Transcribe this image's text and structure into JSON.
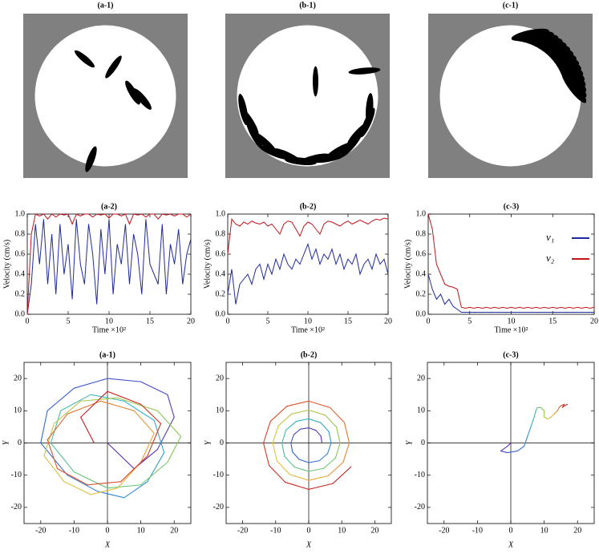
{
  "chart_data": [
    {
      "type": "snapshot",
      "title": "(a-1)"
    },
    {
      "type": "snapshot",
      "title": "(b-1)"
    },
    {
      "type": "snapshot",
      "title": "(c-1)"
    },
    {
      "type": "line",
      "title": "(a-2)",
      "xlabel": "Time ×10²",
      "ylabel": "Velocity (cm/s)",
      "x": [
        0,
        0.5,
        1,
        1.5,
        2,
        2.5,
        3,
        3.5,
        4,
        4.5,
        5,
        5.5,
        6,
        6.5,
        7,
        7.5,
        8,
        8.5,
        9,
        9.5,
        10,
        10.5,
        11,
        11.5,
        12,
        12.5,
        13,
        13.5,
        14,
        14.5,
        15,
        15.5,
        16,
        16.5,
        17,
        17.5,
        18,
        18.5,
        19,
        19.5,
        20
      ],
      "series": [
        {
          "color": "#1f2a9c",
          "values": [
            0,
            0.3,
            0.9,
            0.5,
            0.95,
            0.3,
            0.8,
            0.2,
            0.9,
            0.4,
            0.7,
            0.15,
            0.95,
            0.5,
            0.3,
            0.9,
            0.6,
            0.1,
            0.85,
            0.4,
            0.95,
            0.2,
            0.7,
            0.5,
            0.9,
            0.3,
            0.8,
            0.6,
            0.2,
            0.95,
            0.5,
            0.4,
            0.3,
            0.9,
            0.2,
            0.7,
            0.5,
            0.85,
            0.3,
            0.6,
            0.75
          ]
        },
        {
          "color": "#c0141a",
          "values": [
            0,
            0.8,
            1,
            0.98,
            1,
            0.95,
            1,
            0.97,
            1,
            0.99,
            1,
            0.9,
            1,
            0.98,
            1,
            1,
            0.97,
            1,
            0.99,
            1,
            0.96,
            1,
            1,
            0.98,
            1,
            0.9,
            1,
            0.99,
            1,
            0.97,
            1,
            1,
            0.95,
            1,
            0.99,
            1,
            0.98,
            1,
            1,
            0.97,
            1
          ]
        }
      ],
      "xlim": [
        0,
        20
      ],
      "ylim": [
        0,
        1
      ],
      "xticks": [
        0,
        5,
        10,
        15,
        20
      ],
      "yticks": [
        {
          "value": 0,
          "label": "0.0"
        },
        0.2,
        0.4,
        0.6,
        0.8,
        {
          "value": 1,
          "label": "1.0"
        }
      ]
    },
    {
      "type": "line",
      "title": "(b-2)",
      "xlabel": "Time ×10²",
      "ylabel": "Velocity (cm/s)",
      "x": [
        0,
        0.5,
        1,
        1.5,
        2,
        2.5,
        3,
        3.5,
        4,
        4.5,
        5,
        5.5,
        6,
        6.5,
        7,
        7.5,
        8,
        8.5,
        9,
        9.5,
        10,
        10.5,
        11,
        11.5,
        12,
        12.5,
        13,
        13.5,
        14,
        14.5,
        15,
        15.5,
        16,
        16.5,
        17,
        17.5,
        18,
        18.5,
        19,
        19.5,
        20
      ],
      "series": [
        {
          "color": "#1f2a9c",
          "values": [
            0.2,
            0.45,
            0.1,
            0.3,
            0.35,
            0.4,
            0.3,
            0.45,
            0.5,
            0.35,
            0.5,
            0.4,
            0.55,
            0.45,
            0.6,
            0.5,
            0.45,
            0.55,
            0.5,
            0.6,
            0.7,
            0.55,
            0.65,
            0.5,
            0.6,
            0.55,
            0.65,
            0.5,
            0.6,
            0.45,
            0.55,
            0.5,
            0.6,
            0.4,
            0.5,
            0.55,
            0.45,
            0.6,
            0.5,
            0.55,
            0.4
          ]
        },
        {
          "color": "#c0141a",
          "values": [
            0.6,
            0.95,
            0.9,
            0.88,
            0.92,
            0.9,
            0.93,
            0.91,
            0.9,
            0.92,
            0.88,
            0.9,
            0.85,
            0.8,
            0.9,
            0.93,
            0.92,
            0.85,
            0.78,
            0.88,
            0.92,
            0.9,
            0.85,
            0.8,
            0.9,
            0.93,
            0.92,
            0.9,
            0.88,
            0.91,
            0.93,
            0.9,
            0.92,
            0.94,
            0.92,
            0.9,
            0.93,
            0.95,
            0.94,
            0.96,
            0.95
          ]
        }
      ],
      "xlim": [
        0,
        20
      ],
      "ylim": [
        0,
        1
      ],
      "xticks": [
        0,
        5,
        10,
        15,
        20
      ],
      "yticks": [
        {
          "value": 0,
          "label": "0.0"
        },
        0.2,
        0.4,
        0.6,
        0.8,
        {
          "value": 1,
          "label": "1.0"
        }
      ]
    },
    {
      "type": "line",
      "title": "(c-3)",
      "xlabel": "Time ×10²",
      "ylabel": "Velocity (cm/s)",
      "x": [
        0,
        0.5,
        1,
        1.5,
        2,
        2.5,
        3,
        3.5,
        4,
        4.5,
        5,
        5.5,
        6,
        6.5,
        7,
        7.5,
        8,
        8.5,
        9,
        9.5,
        10,
        10.5,
        11,
        11.5,
        12,
        12.5,
        13,
        13.5,
        14,
        14.5,
        15,
        15.5,
        16,
        16.5,
        17,
        17.5,
        18,
        18.5,
        19,
        19.5,
        20
      ],
      "series": [
        {
          "name": "v₁",
          "color": "#1f2a9c",
          "values": [
            0.4,
            0.25,
            0.15,
            0.2,
            0.1,
            0.15,
            0.08,
            0.05,
            0.02,
            0.02,
            0.02,
            0.02,
            0.02,
            0.02,
            0.02,
            0.02,
            0.02,
            0.02,
            0.02,
            0.02,
            0.02,
            0.02,
            0.02,
            0.02,
            0.02,
            0.02,
            0.02,
            0.02,
            0.02,
            0.02,
            0.02,
            0.02,
            0.02,
            0.02,
            0.02,
            0.02,
            0.02,
            0.02,
            0.02,
            0.02,
            0.02
          ]
        },
        {
          "name": "v₂",
          "color": "#c0141a",
          "values": [
            1,
            0.85,
            0.5,
            0.4,
            0.3,
            0.28,
            0.27,
            0.25,
            0.07,
            0.06,
            0.07,
            0.06,
            0.07,
            0.06,
            0.07,
            0.06,
            0.07,
            0.06,
            0.07,
            0.06,
            0.07,
            0.06,
            0.07,
            0.06,
            0.07,
            0.06,
            0.07,
            0.06,
            0.07,
            0.06,
            0.07,
            0.06,
            0.07,
            0.06,
            0.07,
            0.06,
            0.07,
            0.06,
            0.07,
            0.06,
            0.07
          ]
        }
      ],
      "legend": "upper right",
      "xlim": [
        0,
        20
      ],
      "ylim": [
        0,
        1
      ],
      "xticks": [
        0,
        5,
        10,
        15,
        20
      ],
      "yticks": [
        {
          "value": 0,
          "label": "0.0"
        },
        0.2,
        0.4,
        0.6,
        0.8,
        {
          "value": 1,
          "label": "1.0"
        }
      ]
    },
    {
      "type": "trajectory",
      "title": "(a-1)",
      "xlabel": "X",
      "ylabel": "Y",
      "colormap": [
        "#5b2aa8",
        "#3566d6",
        "#33b5c6",
        "#7cc95a",
        "#e8c33a",
        "#e0542a",
        "#c8191b"
      ],
      "series": [
        {
          "x": [
            0,
            8,
            15,
            20,
            18,
            10,
            0,
            -10,
            -18,
            -20,
            -12,
            -3,
            5,
            12,
            17,
            14,
            5,
            -5,
            -14,
            -17,
            -10,
            0,
            10,
            18,
            22,
            15,
            3,
            -8,
            -16,
            -19,
            -13,
            -5,
            3,
            10,
            14,
            8,
            -2,
            -12,
            -18,
            -15,
            -6,
            4,
            12,
            16,
            10,
            0,
            -8,
            -4
          ],
          "y": [
            0,
            -8,
            -2,
            8,
            15,
            19,
            20,
            17,
            10,
            0,
            -10,
            -15,
            -17,
            -12,
            -3,
            7,
            13,
            15,
            10,
            0,
            -9,
            -14,
            -13,
            -6,
            2,
            10,
            14,
            13,
            6,
            -4,
            -12,
            -16,
            -14,
            -6,
            3,
            10,
            13,
            9,
            1,
            -8,
            -13,
            -12,
            -4,
            6,
            12,
            16,
            8,
            0
          ]
        }
      ],
      "xlim": [
        -25,
        25
      ],
      "ylim": [
        -25,
        25
      ],
      "xticks": [
        -20,
        -10,
        0,
        10,
        20
      ],
      "yticks": [
        -20,
        -10,
        0,
        10,
        20
      ],
      "zero_lines": true
    },
    {
      "type": "trajectory",
      "title": "(b-2)",
      "xlabel": "X",
      "ylabel": "Y",
      "colormap": [
        "#5b2aa8",
        "#3566d6",
        "#33b5c6",
        "#7cc95a",
        "#e8c33a",
        "#e0542a",
        "#c8191b"
      ],
      "series": [
        {
          "x": [
            4,
            3.7,
            2.2,
            0,
            -2.5,
            -4.5,
            -5.4,
            -4.9,
            -2.9,
            0,
            3.2,
            5.7,
            6.8,
            6.1,
            3.6,
            0,
            -3.8,
            -6.9,
            -8.1,
            -7.3,
            -4.3,
            0,
            4.5,
            8.1,
            9.5,
            8.4,
            5,
            0,
            -5.2,
            -9.2,
            -10.9,
            -9.6,
            -5.7,
            0,
            5.9,
            10.4,
            12.3,
            10.8,
            6.4,
            0,
            -6.6,
            -11.6,
            -13.7,
            -12,
            -7.1,
            0,
            7.3,
            12.8
          ],
          "y": [
            0,
            2.1,
            3.9,
            4.7,
            4.3,
            2.6,
            0,
            -2.8,
            -5.1,
            -6.1,
            -5.5,
            -3.3,
            0,
            3.5,
            6.3,
            7.5,
            6.7,
            4,
            0,
            -4.2,
            -7.5,
            -8.8,
            -7.9,
            -4.7,
            0,
            4.9,
            8.6,
            10.2,
            9,
            5.3,
            0,
            -5.6,
            -9.8,
            -11.6,
            -10.2,
            -6,
            0,
            6.3,
            11,
            13,
            11.4,
            6.7,
            0,
            -7,
            -12.2,
            -14.4,
            -12.6,
            -7.4
          ]
        }
      ],
      "xlim": [
        -25,
        25
      ],
      "ylim": [
        -25,
        25
      ],
      "xticks": [
        -20,
        -10,
        0,
        10,
        20
      ],
      "yticks": [
        -20,
        -10,
        0,
        10,
        20
      ],
      "zero_lines": true
    },
    {
      "type": "trajectory",
      "title": "(c-3)",
      "xlabel": "X",
      "ylabel": "Y",
      "colormap": [
        "#5b2aa8",
        "#3566d6",
        "#33b5c6",
        "#7cc95a",
        "#e8c33a",
        "#e0542a",
        "#c8191b"
      ],
      "series": [
        {
          "x": [
            0,
            -1,
            -3,
            -1,
            2,
            4,
            5,
            6,
            7,
            7.5,
            8,
            9,
            10,
            10,
            11,
            12,
            13,
            14,
            14.5,
            15,
            16,
            15.5,
            16,
            17
          ],
          "y": [
            0,
            -1,
            -2.5,
            -3,
            -2.5,
            -1,
            2,
            5,
            8,
            10,
            11,
            11,
            10,
            8,
            7.5,
            8,
            9,
            10,
            11,
            11.5,
            12,
            11,
            11.5,
            12
          ]
        }
      ],
      "xlim": [
        -25,
        25
      ],
      "ylim": [
        -25,
        25
      ],
      "xticks": [
        -20,
        -10,
        0,
        10,
        20
      ],
      "yticks": [
        -20,
        -10,
        0,
        10,
        20
      ],
      "zero_lines": true
    }
  ]
}
